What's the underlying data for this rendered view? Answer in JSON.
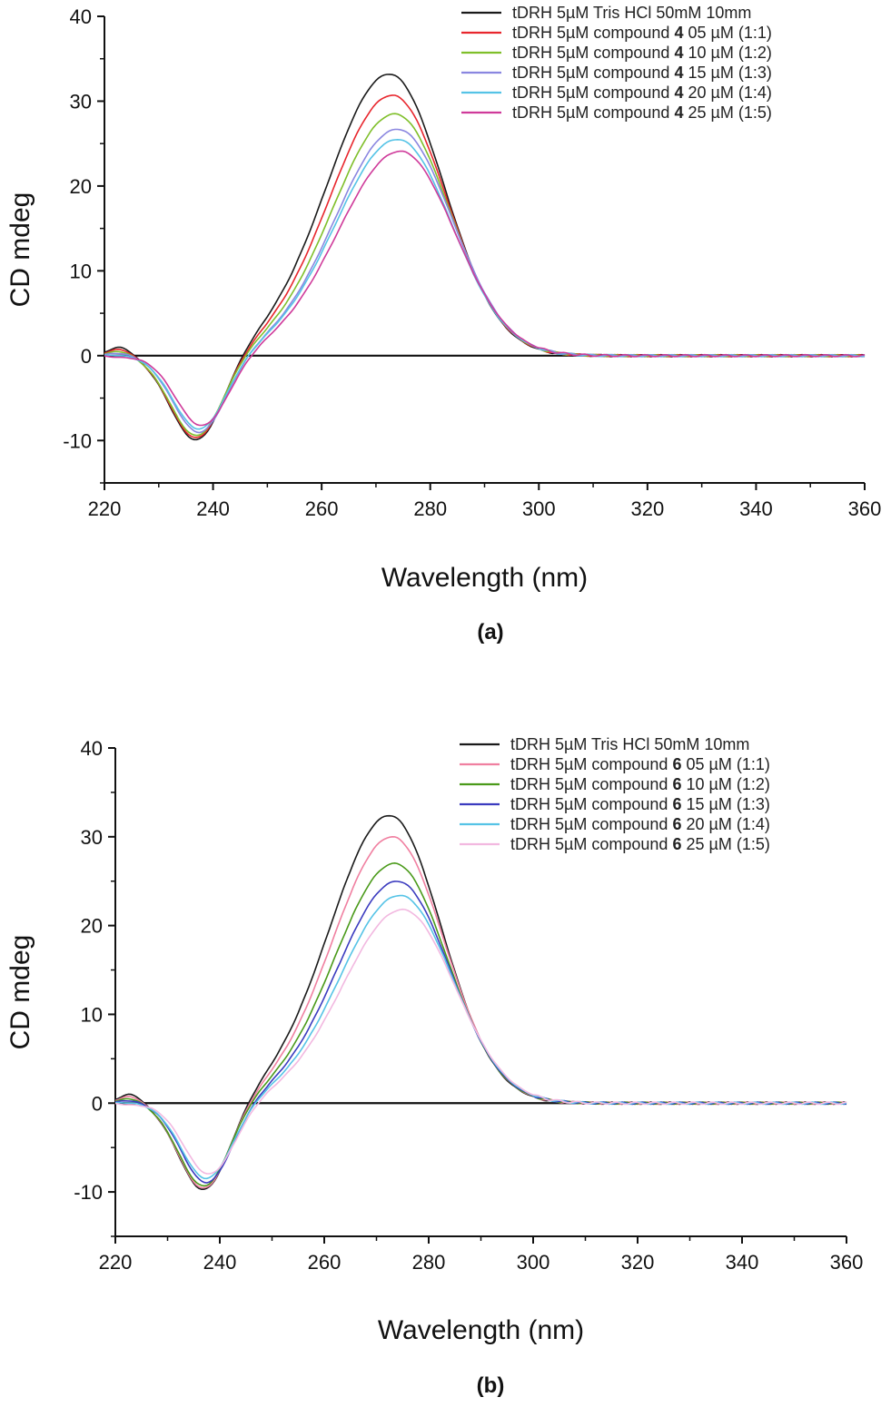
{
  "colors": {
    "black": "#1a1a1a",
    "red": "#e8262d",
    "green": "#7fbf2a",
    "blue_violet": "#8a86e0",
    "cyan": "#55c3e6",
    "magenta": "#cf3a9a",
    "pink": "#f07fa0",
    "dark_green": "#4a9a1a",
    "dark_blue": "#3b3bbf",
    "light_pink": "#f2b8e0"
  },
  "chart_data": [
    {
      "type": "line",
      "panel_label": "(a)",
      "xlabel": "Wavelength (nm)",
      "ylabel": "CD mdeg",
      "xlim": [
        220,
        360
      ],
      "ylim": [
        -15,
        40
      ],
      "xticks": [
        "220",
        "240",
        "260",
        "280",
        "300",
        "320",
        "340",
        "360"
      ],
      "yticks": [
        "-10",
        "0",
        "10",
        "20",
        "30",
        "40"
      ],
      "zero_line": true,
      "legend_position": "top-right",
      "series": [
        {
          "name_pre": "tDRH 5µM Tris HCl 50mM 10mm",
          "name_bold": "",
          "name_post": "",
          "color": "#1a1a1a",
          "min_x": 237,
          "min_y": -10.2,
          "peak_x": 272.5,
          "peak_y": 33.2
        },
        {
          "name_pre": "tDRH 5µM compound ",
          "name_bold": "4",
          "name_post": " 05 µM (1:1)",
          "color": "#e8262d",
          "min_x": 237,
          "min_y": -9.9,
          "peak_x": 273,
          "peak_y": 30.7
        },
        {
          "name_pre": "tDRH 5µM compound ",
          "name_bold": "4",
          "name_post": " 10 µM (1:2)",
          "color": "#7fbf2a",
          "min_x": 237,
          "min_y": -9.6,
          "peak_x": 273.5,
          "peak_y": 28.5
        },
        {
          "name_pre": "tDRH 5µM compound ",
          "name_bold": "4",
          "name_post": " 15 µM (1:3)",
          "color": "#8a86e0",
          "min_x": 237.5,
          "min_y": -9.2,
          "peak_x": 274,
          "peak_y": 26.7
        },
        {
          "name_pre": "tDRH 5µM compound ",
          "name_bold": "4",
          "name_post": " 20 µM (1:4)",
          "color": "#55c3e6",
          "min_x": 237.5,
          "min_y": -8.8,
          "peak_x": 274,
          "peak_y": 25.5
        },
        {
          "name_pre": "tDRH 5µM compound ",
          "name_bold": "4",
          "name_post": " 25 µM (1:5)",
          "color": "#cf3a9a",
          "min_x": 238,
          "min_y": -8.4,
          "peak_x": 274.5,
          "peak_y": 24.1
        }
      ]
    },
    {
      "type": "line",
      "panel_label": "(b)",
      "xlabel": "Wavelength (nm)",
      "ylabel": "CD mdeg",
      "xlim": [
        220,
        360
      ],
      "ylim": [
        -15,
        40
      ],
      "xticks": [
        "220",
        "240",
        "260",
        "280",
        "300",
        "320",
        "340",
        "360"
      ],
      "yticks": [
        "-10",
        "0",
        "10",
        "20",
        "30",
        "40"
      ],
      "zero_line": true,
      "legend_position": "top-right",
      "series": [
        {
          "name_pre": "tDRH 5µM Tris HCl 50mM 10mm",
          "name_bold": "",
          "name_post": "",
          "color": "#1a1a1a",
          "min_x": 237,
          "min_y": -10.0,
          "peak_x": 272.5,
          "peak_y": 32.4
        },
        {
          "name_pre": "tDRH 5µM compound ",
          "name_bold": "6",
          "name_post": " 05 µM (1:1)",
          "color": "#f07fa0",
          "min_x": 237,
          "min_y": -9.8,
          "peak_x": 273,
          "peak_y": 30.0
        },
        {
          "name_pre": "tDRH 5µM compound ",
          "name_bold": "6",
          "name_post": " 10 µM (1:2)",
          "color": "#4a9a1a",
          "min_x": 237,
          "min_y": -9.5,
          "peak_x": 273.5,
          "peak_y": 27.0
        },
        {
          "name_pre": "tDRH 5µM compound ",
          "name_bold": "6",
          "name_post": " 15 µM (1:3)",
          "color": "#3b3bbf",
          "min_x": 237.5,
          "min_y": -9.1,
          "peak_x": 274,
          "peak_y": 25.0
        },
        {
          "name_pre": "tDRH 5µM compound ",
          "name_bold": "6",
          "name_post": " 20 µM (1:4)",
          "color": "#55c3e6",
          "min_x": 237.5,
          "min_y": -8.6,
          "peak_x": 274.5,
          "peak_y": 23.4
        },
        {
          "name_pre": "tDRH 5µM compound ",
          "name_bold": "6",
          "name_post": " 25 µM (1:5)",
          "color": "#f2b8e0",
          "min_x": 238,
          "min_y": -8.1,
          "peak_x": 275,
          "peak_y": 21.8
        }
      ]
    }
  ]
}
